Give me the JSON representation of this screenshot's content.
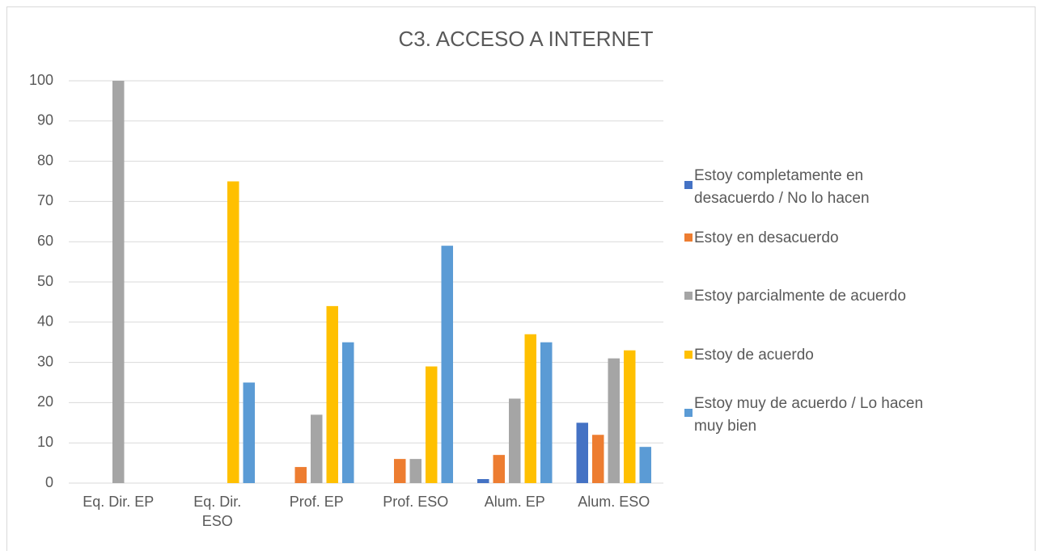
{
  "chart_data": {
    "type": "bar",
    "title": "C3. ACCESO A INTERNET",
    "categories": [
      "Eq. Dir. EP",
      "Eq. Dir. ESO",
      "Prof. EP",
      "Prof. ESO",
      "Alum. EP",
      "Alum. ESO"
    ],
    "series": [
      {
        "name": "Estoy completamente en desacuerdo / No lo hacen",
        "color": "#4472c4",
        "values": [
          0,
          0,
          0,
          0,
          1,
          15
        ]
      },
      {
        "name": "Estoy en desacuerdo",
        "color": "#ed7d31",
        "values": [
          0,
          0,
          4,
          6,
          7,
          12
        ]
      },
      {
        "name": "Estoy parcialmente de acuerdo",
        "color": "#a5a5a5",
        "values": [
          100,
          0,
          17,
          6,
          21,
          31
        ]
      },
      {
        "name": "Estoy de acuerdo",
        "color": "#ffc000",
        "values": [
          0,
          75,
          44,
          29,
          37,
          33
        ]
      },
      {
        "name": "Estoy muy de acuerdo / Lo hacen muy bien",
        "color": "#5b9bd5",
        "values": [
          0,
          25,
          35,
          59,
          35,
          9
        ]
      }
    ],
    "ylim": [
      0,
      100
    ],
    "yticks": [
      0,
      10,
      20,
      30,
      40,
      50,
      60,
      70,
      80,
      90,
      100
    ],
    "grid": true,
    "legend": "right"
  }
}
